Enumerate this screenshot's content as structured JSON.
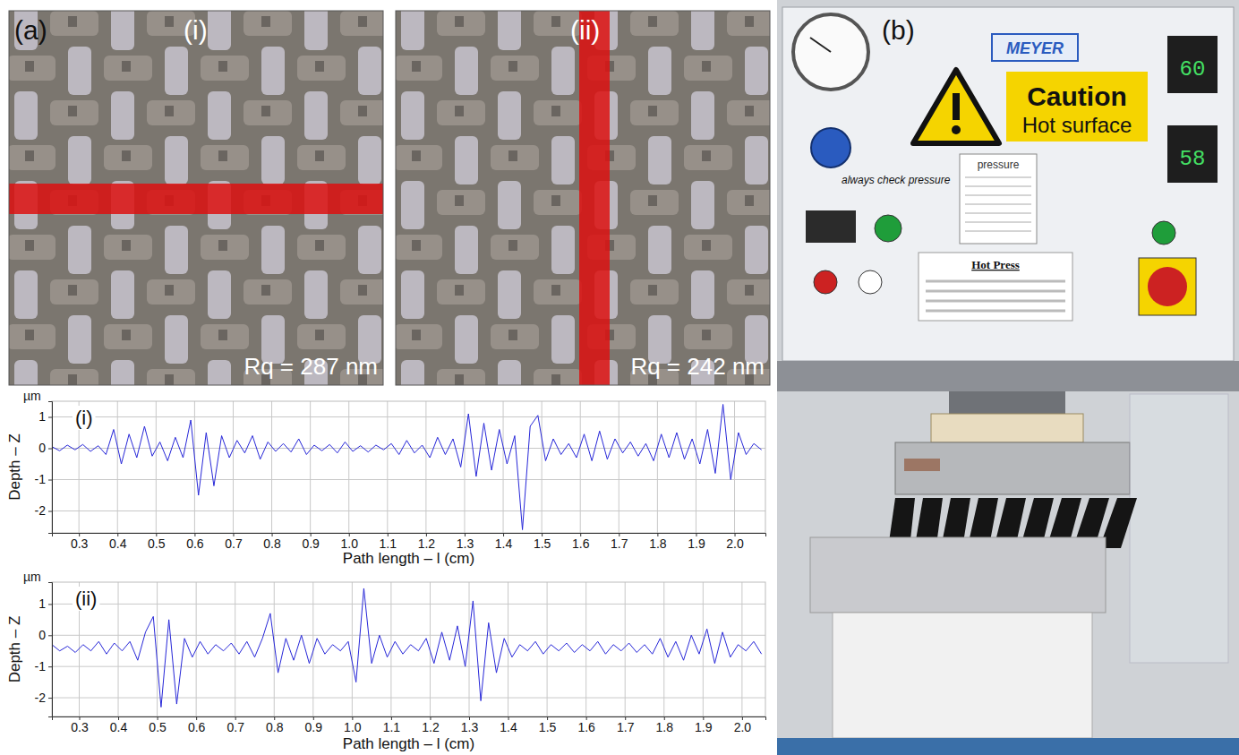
{
  "figure": {
    "a": {
      "label": "(a)",
      "images": [
        {
          "label": "(i)",
          "rq": "Rq = 287 nm"
        },
        {
          "label": "(ii)",
          "rq": "Rq = 242 nm"
        }
      ]
    },
    "b": {
      "label": "(b)",
      "texts": {
        "brand": "MEYER",
        "caution": "Caution",
        "hot_surface": "Hot surface",
        "top_temp": "60",
        "bottom_temp": "58",
        "pressure": "pressure",
        "note": "always check pressure",
        "press_title": "Hot Press"
      }
    }
  },
  "chart_data": [
    {
      "type": "line",
      "title": "(i)",
      "x_label": "Path length – l (cm)",
      "y_label": "Depth – Z",
      "annotations": [
        "µm"
      ],
      "x": [
        0.23,
        0.25,
        0.27,
        0.29,
        0.31,
        0.33,
        0.35,
        0.37,
        0.39,
        0.41,
        0.43,
        0.45,
        0.47,
        0.49,
        0.51,
        0.53,
        0.55,
        0.57,
        0.59,
        0.61,
        0.63,
        0.65,
        0.67,
        0.69,
        0.71,
        0.73,
        0.75,
        0.77,
        0.79,
        0.81,
        0.83,
        0.85,
        0.87,
        0.89,
        0.91,
        0.93,
        0.95,
        0.97,
        0.99,
        1.01,
        1.03,
        1.05,
        1.07,
        1.09,
        1.11,
        1.13,
        1.15,
        1.17,
        1.19,
        1.21,
        1.23,
        1.25,
        1.27,
        1.29,
        1.31,
        1.33,
        1.35,
        1.37,
        1.39,
        1.41,
        1.43,
        1.45,
        1.47,
        1.49,
        1.51,
        1.53,
        1.55,
        1.57,
        1.59,
        1.61,
        1.63,
        1.65,
        1.67,
        1.69,
        1.71,
        1.73,
        1.75,
        1.77,
        1.79,
        1.81,
        1.83,
        1.85,
        1.87,
        1.89,
        1.91,
        1.93,
        1.95,
        1.97,
        1.99,
        2.01,
        2.03,
        2.05,
        2.07
      ],
      "series": [
        {
          "color": "#2727d8",
          "values": [
            0.05,
            -0.08,
            0.1,
            -0.05,
            0.12,
            -0.1,
            0.08,
            -0.2,
            0.6,
            -0.5,
            0.45,
            -0.3,
            0.7,
            -0.25,
            0.2,
            -0.4,
            0.35,
            -0.3,
            0.9,
            -1.5,
            0.5,
            -1.2,
            0.4,
            -0.3,
            0.25,
            -0.15,
            0.4,
            -0.35,
            0.2,
            -0.1,
            0.15,
            -0.12,
            0.3,
            -0.2,
            0.1,
            -0.08,
            0.12,
            -0.15,
            0.2,
            -0.1,
            0.08,
            -0.12,
            0.1,
            -0.05,
            0.15,
            -0.2,
            0.25,
            -0.15,
            0.1,
            -0.3,
            0.35,
            -0.2,
            0.3,
            -0.6,
            1.1,
            -0.9,
            0.8,
            -0.7,
            0.6,
            -0.5,
            0.4,
            -2.6,
            0.7,
            1.05,
            -0.4,
            0.3,
            -0.2,
            0.15,
            -0.3,
            0.45,
            -0.4,
            0.55,
            -0.35,
            0.3,
            -0.15,
            0.2,
            -0.25,
            0.15,
            -0.4,
            0.45,
            -0.3,
            0.5,
            -0.35,
            0.3,
            -0.5,
            0.6,
            -0.8,
            1.4,
            -1.0,
            0.5,
            -0.2,
            0.15,
            -0.05
          ]
        }
      ],
      "xlim": [
        0.23,
        2.08
      ],
      "ylim": [
        -2.7,
        1.5
      ],
      "xticks": [
        0.3,
        0.4,
        0.5,
        0.6,
        0.7,
        0.8,
        0.9,
        {
          "value": 1,
          "label": "1.0"
        },
        1.1,
        1.2,
        1.3,
        1.4,
        1.5,
        1.6,
        1.7,
        1.8,
        1.9,
        {
          "value": 2,
          "label": "2.0"
        }
      ],
      "yticks": [
        -2,
        -1,
        0,
        1
      ],
      "grid": true
    },
    {
      "type": "line",
      "title": "(ii)",
      "x_label": "Path length – l (cm)",
      "y_label": "Depth – Z",
      "annotations": [
        "µm"
      ],
      "x": [
        0.23,
        0.25,
        0.27,
        0.29,
        0.31,
        0.33,
        0.35,
        0.37,
        0.39,
        0.41,
        0.43,
        0.45,
        0.47,
        0.49,
        0.51,
        0.53,
        0.55,
        0.57,
        0.59,
        0.61,
        0.63,
        0.65,
        0.67,
        0.69,
        0.71,
        0.73,
        0.75,
        0.77,
        0.79,
        0.81,
        0.83,
        0.85,
        0.87,
        0.89,
        0.91,
        0.93,
        0.95,
        0.97,
        0.99,
        1.01,
        1.03,
        1.05,
        1.07,
        1.09,
        1.11,
        1.13,
        1.15,
        1.17,
        1.19,
        1.21,
        1.23,
        1.25,
        1.27,
        1.29,
        1.31,
        1.33,
        1.35,
        1.37,
        1.39,
        1.41,
        1.43,
        1.45,
        1.47,
        1.49,
        1.51,
        1.53,
        1.55,
        1.57,
        1.59,
        1.61,
        1.63,
        1.65,
        1.67,
        1.69,
        1.71,
        1.73,
        1.75,
        1.77,
        1.79,
        1.81,
        1.83,
        1.85,
        1.87,
        1.89,
        1.91,
        1.93,
        1.95,
        1.97,
        1.99,
        2.01,
        2.03,
        2.05
      ],
      "series": [
        {
          "color": "#2727d8",
          "values": [
            -0.3,
            -0.5,
            -0.35,
            -0.55,
            -0.3,
            -0.5,
            -0.2,
            -0.6,
            -0.25,
            -0.5,
            -0.2,
            -0.8,
            0.1,
            0.6,
            -2.3,
            0.5,
            -2.2,
            -0.1,
            -0.7,
            -0.2,
            -0.6,
            -0.3,
            -0.5,
            -0.25,
            -0.6,
            -0.2,
            -0.7,
            -0.1,
            0.7,
            -1.2,
            -0.1,
            -0.8,
            0.0,
            -0.9,
            -0.1,
            -0.6,
            -0.3,
            -0.5,
            -0.2,
            -1.5,
            1.5,
            -0.9,
            0.0,
            -0.7,
            -0.2,
            -0.6,
            -0.3,
            -0.5,
            -0.1,
            -0.9,
            0.1,
            -0.8,
            0.3,
            -1.0,
            1.1,
            -2.1,
            0.4,
            -1.2,
            -0.1,
            -0.7,
            -0.3,
            -0.5,
            -0.2,
            -0.6,
            -0.3,
            -0.5,
            -0.25,
            -0.55,
            -0.3,
            -0.5,
            -0.2,
            -0.6,
            -0.3,
            -0.5,
            -0.25,
            -0.55,
            -0.3,
            -0.6,
            -0.1,
            -0.7,
            -0.2,
            -0.8,
            0.0,
            -0.6,
            0.2,
            -0.9,
            0.1,
            -0.7,
            -0.3,
            -0.5,
            -0.2,
            -0.6
          ]
        }
      ],
      "xlim": [
        0.23,
        2.06
      ],
      "ylim": [
        -2.6,
        1.7
      ],
      "xticks": [
        0.3,
        0.4,
        0.5,
        0.6,
        0.7,
        0.8,
        0.9,
        {
          "value": 1,
          "label": "1.0"
        },
        1.1,
        1.2,
        1.3,
        1.4,
        1.5,
        1.6,
        1.7,
        1.8,
        1.9,
        {
          "value": 2,
          "label": "2.0"
        }
      ],
      "yticks": [
        -2,
        -1,
        0,
        1
      ],
      "grid": true
    }
  ]
}
